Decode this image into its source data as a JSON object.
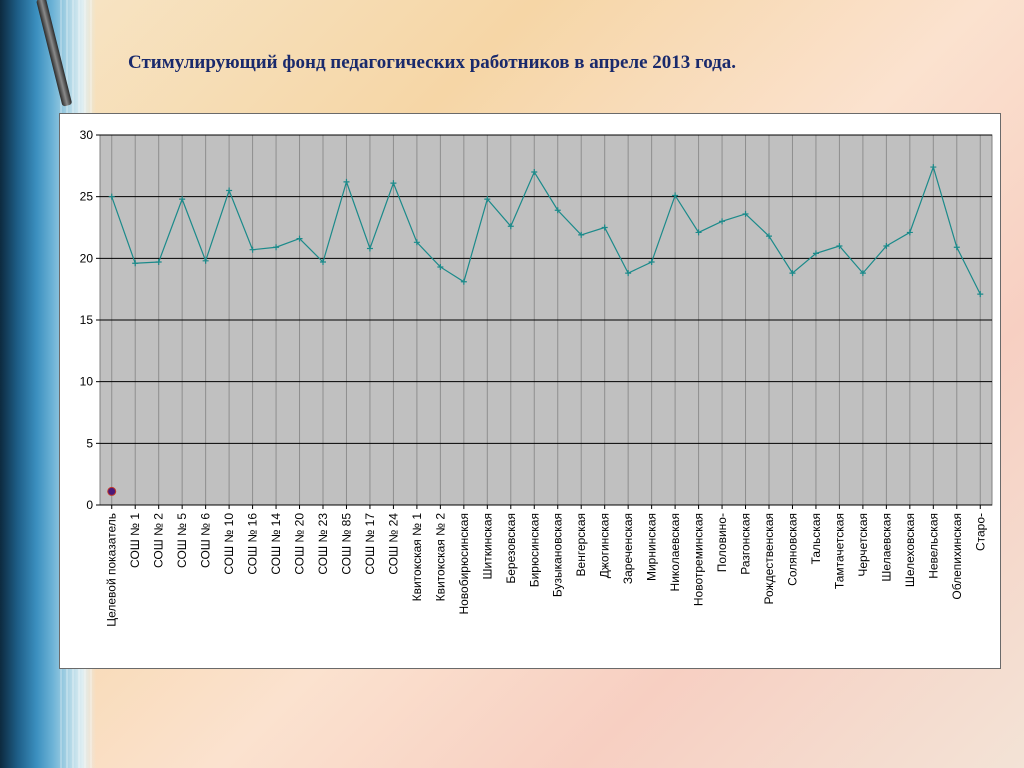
{
  "title": "Стимулирующий фонд педагогических работников в апреле 2013 года.",
  "colors": {
    "plot_background": "#c0c0c0",
    "line": "#1b8a8a",
    "target_marker": "#4a1a7a",
    "gridline": "#000000"
  },
  "chart_data": {
    "type": "line",
    "title": "Стимулирующий фонд педагогических работников в апреле 2013 года.",
    "xlabel": "",
    "ylabel": "",
    "ylim": [
      0,
      30
    ],
    "yticks": [
      0,
      5,
      10,
      15,
      20,
      25,
      30
    ],
    "grid": true,
    "legend": "none",
    "categories": [
      "Целевой показатель",
      "СОШ № 1",
      "СОШ № 2",
      "СОШ № 5",
      "СОШ № 6",
      "СОШ № 10",
      "СОШ № 16",
      "СОШ № 14",
      "СОШ № 20",
      "СОШ № 23",
      "СОШ № 85",
      "СОШ № 17",
      "СОШ № 24",
      "Квитокская № 1",
      "Квитокская  № 2",
      "Новобирюсинская",
      "Шиткинская",
      "Березовская",
      "Бирюсинская",
      "Бузыкановская",
      "Венгерская",
      "Джогинская",
      "Зареченская",
      "Мирнинская",
      "Николаевская",
      "Новотреминская",
      "Половино-",
      "Разгонская",
      "Рождественская",
      "Соляновская",
      "Тальская",
      "Тамтачетская",
      "Черчетская",
      "Шелаевская",
      "Шелеховская",
      "Невельская",
      "Облепихинская",
      "Старо-"
    ],
    "series": [
      {
        "values": [
          25.0,
          19.6,
          19.7,
          24.8,
          19.8,
          25.5,
          20.7,
          20.9,
          21.6,
          19.7,
          26.2,
          20.8,
          26.1,
          21.3,
          19.3,
          18.1,
          24.8,
          22.6,
          27.0,
          23.9,
          21.9,
          22.5,
          18.8,
          19.7,
          25.1,
          22.1,
          23.0,
          23.6,
          21.8,
          18.8,
          20.4,
          21.0,
          18.8,
          21.0,
          22.1,
          27.4,
          20.9,
          17.1
        ]
      }
    ],
    "target_point": {
      "category": "Целевой показатель",
      "value": 1.1
    }
  }
}
